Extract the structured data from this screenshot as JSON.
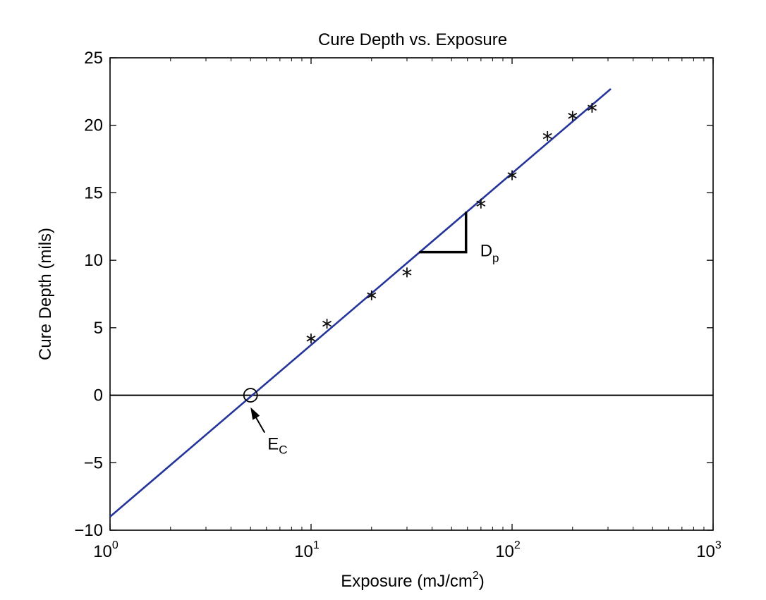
{
  "chart_data": {
    "type": "scatter",
    "title": "Cure Depth vs. Exposure",
    "xlabel": {
      "text": "Exposure (mJ/cm",
      "superscript": "2",
      "suffix": ")"
    },
    "ylabel": "Cure Depth (mils)",
    "xscale": "log",
    "xlim": [
      1,
      1000
    ],
    "ylim": [
      -10,
      25
    ],
    "xticks": [
      {
        "value": 1,
        "base": "10",
        "exp": "0"
      },
      {
        "value": 10,
        "base": "10",
        "exp": "1"
      },
      {
        "value": 100,
        "base": "10",
        "exp": "2"
      },
      {
        "value": 1000,
        "base": "10",
        "exp": "3"
      }
    ],
    "yticks": [
      {
        "value": -10,
        "label": "−10"
      },
      {
        "value": -5,
        "label": "−5"
      },
      {
        "value": 0,
        "label": "0"
      },
      {
        "value": 5,
        "label": "5"
      },
      {
        "value": 10,
        "label": "10"
      },
      {
        "value": 15,
        "label": "15"
      },
      {
        "value": 20,
        "label": "20"
      },
      {
        "value": 25,
        "label": "25"
      }
    ],
    "grid": false,
    "series": [
      {
        "marker": "asterisk",
        "color": "#111111",
        "x": [
          10,
          12,
          20,
          30,
          70,
          100,
          150,
          200,
          250
        ],
        "y": [
          4.2,
          5.3,
          7.4,
          9.1,
          14.2,
          16.3,
          19.2,
          20.7,
          21.3
        ]
      }
    ],
    "fit_line": {
      "color": "#25349a",
      "x": [
        1,
        310
      ],
      "y": [
        -9.0,
        22.7
      ]
    },
    "zero_line": {
      "y": 0,
      "color": "#000000"
    },
    "annotations": {
      "ec": {
        "text": "E",
        "sub": "c",
        "x": 5,
        "y": 0
      },
      "dp": {
        "text": "D",
        "sub": "p",
        "x_start": 35,
        "x_end": 59,
        "y_low": 10.6,
        "y_high": 13.5
      }
    }
  }
}
